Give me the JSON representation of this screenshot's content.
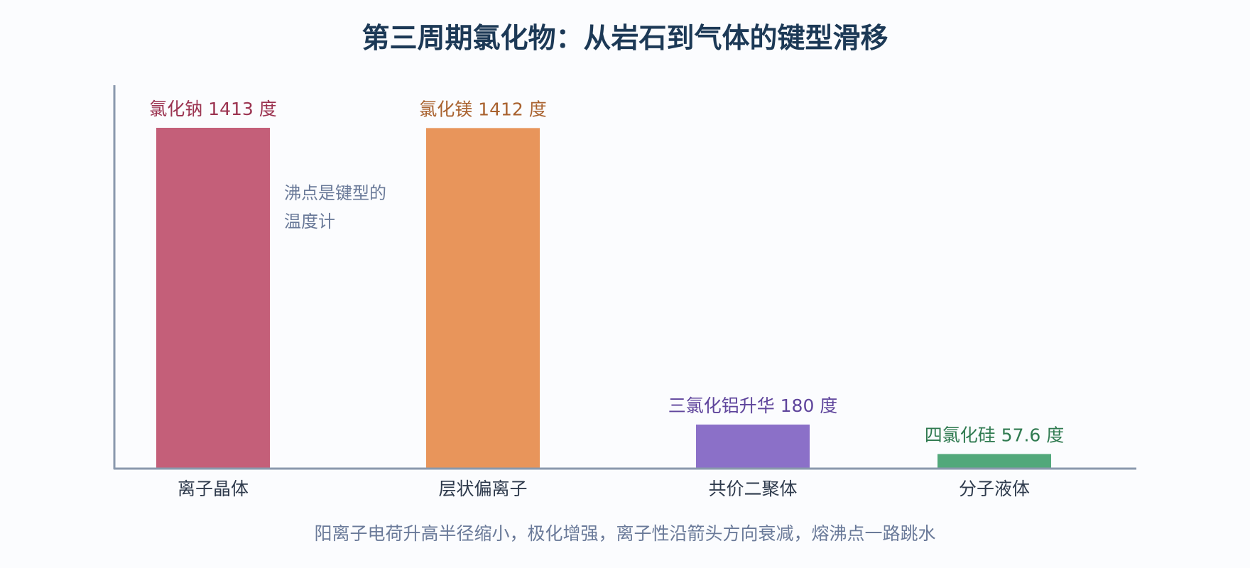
{
  "chart_data": {
    "type": "bar",
    "title": "第三周期氯化物：从岩石到气体的键型滑移",
    "subtitle": "阳离子电荷升高半径缩小，极化增强，离子性沿箭头方向衰减，熔沸点一路跳水",
    "annotation": {
      "lines": [
        "沸点是键型的",
        "温度计"
      ],
      "color": "#6a7a99"
    },
    "axis_color": "#8a99ad",
    "category_label_color": "#2e3a4c",
    "title_color": "#1c3956",
    "subtitle_color": "#6a7a99",
    "grid": false,
    "legend": "none",
    "categories": [
      "离子晶体",
      "层状偏离子",
      "共价二聚体",
      "分子液体"
    ],
    "values": [
      1413,
      1412,
      180,
      57.6
    ],
    "ylim": [
      0,
      1600
    ],
    "bar_labels": [
      "氯化钠 1413 度",
      "氯化镁 1412 度",
      "三氯化铝升华 180 度",
      "四氯化硅 57.6 度"
    ],
    "bar_colors": [
      "#c45f79",
      "#e8955b",
      "#8b70c8",
      "#52a87b"
    ],
    "label_colors": [
      "#9b3350",
      "#a9622f",
      "#5f459c",
      "#2f7a50"
    ]
  }
}
